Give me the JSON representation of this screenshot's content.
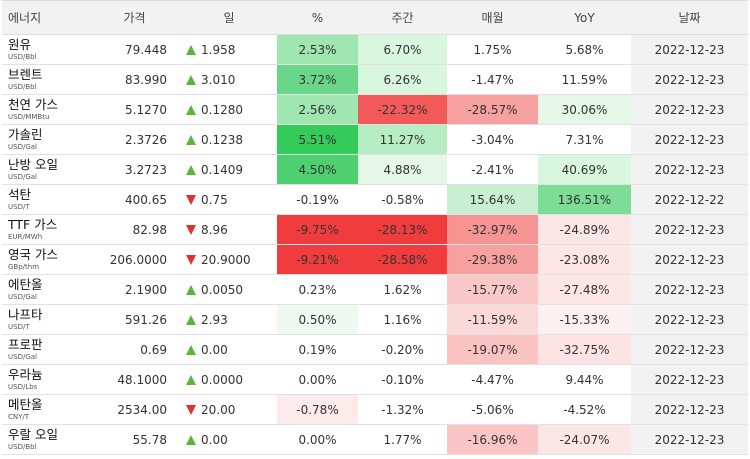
{
  "headers": [
    "에너지",
    "가격",
    "일",
    "%",
    "주간",
    "매월",
    "YoY",
    "날짜"
  ],
  "rows": [
    {
      "name": "원유",
      "unit": "USD/Bbl",
      "price": "79.448",
      "dir": "up",
      "change": "1.958",
      "pct": "2.53%",
      "week": "6.70%",
      "month": "1.75%",
      "yoy": "5.68%",
      "date": "2022-12-23",
      "bg": {
        "pct": "#9fe6b0",
        "week": "#d9f7df",
        "month": "",
        "yoy": ""
      }
    },
    {
      "name": "브렌트",
      "unit": "USD/Bbl",
      "price": "83.990",
      "dir": "up",
      "change": "3.010",
      "pct": "3.72%",
      "week": "6.26%",
      "month": "-1.47%",
      "yoy": "11.59%",
      "date": "2022-12-23",
      "bg": {
        "pct": "#6ad68a",
        "week": "#d9f7df",
        "month": "",
        "yoy": ""
      }
    },
    {
      "name": "천연 가스",
      "unit": "USD/MMBtu",
      "price": "5.1270",
      "dir": "up",
      "change": "0.1280",
      "pct": "2.56%",
      "week": "-22.32%",
      "month": "-28.57%",
      "yoy": "30.06%",
      "date": "2022-12-23",
      "bg": {
        "pct": "#9fe6b0",
        "week": "#f25a5a",
        "month": "#f7a0a0",
        "yoy": "#e5f8e8"
      }
    },
    {
      "name": "가솔린",
      "unit": "USD/Gal",
      "price": "2.3726",
      "dir": "up",
      "change": "0.1238",
      "pct": "5.51%",
      "week": "11.27%",
      "month": "-3.04%",
      "yoy": "7.31%",
      "date": "2022-12-23",
      "bg": {
        "pct": "#33cc5a",
        "week": "#b7edc3",
        "month": "",
        "yoy": ""
      }
    },
    {
      "name": "난방 오일",
      "unit": "USD/Gal",
      "price": "3.2723",
      "dir": "up",
      "change": "0.1409",
      "pct": "4.50%",
      "week": "4.88%",
      "month": "-2.41%",
      "yoy": "40.69%",
      "date": "2022-12-23",
      "bg": {
        "pct": "#4fd070",
        "week": "#e5f8e8",
        "month": "",
        "yoy": "#d9f7df"
      }
    },
    {
      "name": "석탄",
      "unit": "USD/T",
      "price": "400.65",
      "dir": "down",
      "change": "0.75",
      "pct": "-0.19%",
      "week": "-0.58%",
      "month": "15.64%",
      "yoy": "136.51%",
      "date": "2022-12-22",
      "bg": {
        "pct": "",
        "week": "",
        "month": "#c8f0d0",
        "yoy": "#7ddc95"
      }
    },
    {
      "name": "TTF 가스",
      "unit": "EUR/MWh",
      "price": "82.98",
      "dir": "down",
      "change": "8.96",
      "pct": "-9.75%",
      "week": "-28.13%",
      "month": "-32.97%",
      "yoy": "-24.89%",
      "date": "2022-12-23",
      "bg": {
        "pct": "#f03c3c",
        "week": "#f03c3c",
        "month": "#f69494",
        "yoy": "#fde6e6"
      }
    },
    {
      "name": "영국 가스",
      "unit": "GBp/thm",
      "price": "206.0000",
      "dir": "down",
      "change": "20.9000",
      "pct": "-9.21%",
      "week": "-28.58%",
      "month": "-29.38%",
      "yoy": "-23.08%",
      "date": "2022-12-23",
      "bg": {
        "pct": "#f03c3c",
        "week": "#f03c3c",
        "month": "#f7a0a0",
        "yoy": "#fde6e6"
      }
    },
    {
      "name": "에탄올",
      "unit": "USD/Gal",
      "price": "2.1900",
      "dir": "up",
      "change": "0.0050",
      "pct": "0.23%",
      "week": "1.62%",
      "month": "-15.77%",
      "yoy": "-27.48%",
      "date": "2022-12-23",
      "bg": {
        "pct": "",
        "week": "",
        "month": "#fbc8c8",
        "yoy": "#fde6e6"
      }
    },
    {
      "name": "나프타",
      "unit": "USD/T",
      "price": "591.26",
      "dir": "up",
      "change": "2.93",
      "pct": "0.50%",
      "week": "1.16%",
      "month": "-11.59%",
      "yoy": "-15.33%",
      "date": "2022-12-23",
      "bg": {
        "pct": "#eefaf0",
        "week": "",
        "month": "#fcd9d9",
        "yoy": "#fdf0f0"
      }
    },
    {
      "name": "프로판",
      "unit": "USD/Gal",
      "price": "0.69",
      "dir": "up",
      "change": "0.00",
      "pct": "0.19%",
      "week": "-0.20%",
      "month": "-19.07%",
      "yoy": "-32.75%",
      "date": "2022-12-23",
      "bg": {
        "pct": "",
        "week": "",
        "month": "#fbc2c2",
        "yoy": "#fde3e3"
      }
    },
    {
      "name": "우라늄",
      "unit": "USD/Lbs",
      "price": "48.1000",
      "dir": "up",
      "change": "0.0000",
      "pct": "0.00%",
      "week": "-0.10%",
      "month": "-4.47%",
      "yoy": "9.44%",
      "date": "2022-12-23",
      "bg": {
        "pct": "",
        "week": "",
        "month": "",
        "yoy": ""
      }
    },
    {
      "name": "메탄올",
      "unit": "CNY/T",
      "price": "2534.00",
      "dir": "down",
      "change": "20.00",
      "pct": "-0.78%",
      "week": "-1.32%",
      "month": "-5.06%",
      "yoy": "-4.52%",
      "date": "2022-12-23",
      "bg": {
        "pct": "#fdeaea",
        "week": "",
        "month": "",
        "yoy": ""
      }
    },
    {
      "name": "우랄 오일",
      "unit": "USD/Bbl",
      "price": "55.78",
      "dir": "up",
      "change": "0.00",
      "pct": "0.00%",
      "week": "1.77%",
      "month": "-16.96%",
      "yoy": "-24.07%",
      "date": "2022-12-23",
      "bg": {
        "pct": "",
        "week": "",
        "month": "#fbc5c5",
        "yoy": "#fde6e6"
      }
    }
  ]
}
